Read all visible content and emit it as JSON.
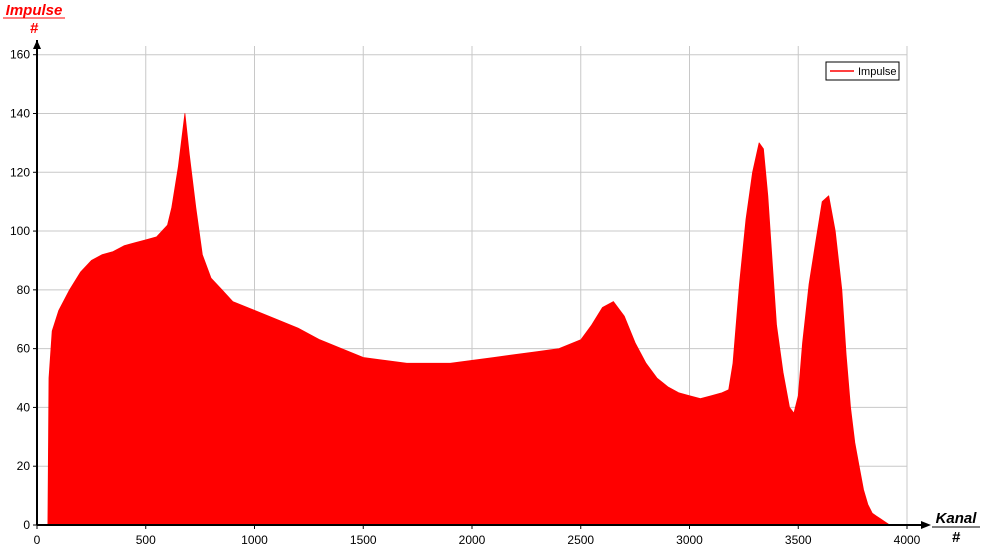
{
  "chart_data": {
    "type": "area",
    "title": "",
    "ylabel": "Impulse",
    "ylabel_unit": "#",
    "xlabel": "Kanal",
    "xlabel_unit": "#",
    "xlim": [
      0,
      4000
    ],
    "ylim": [
      0,
      165
    ],
    "x_ticks": [
      "0",
      "500",
      "1000",
      "1500",
      "2000",
      "2500",
      "3000",
      "3500",
      "4000"
    ],
    "y_ticks": [
      "0",
      "20",
      "40",
      "60",
      "80",
      "100",
      "120",
      "140",
      "160"
    ],
    "grid": true,
    "legend": {
      "position": "top-right",
      "entries": [
        "Impulse"
      ]
    },
    "colors": {
      "fill": "#ff0000",
      "axis": "#000000",
      "grid": "#c8c8c8",
      "title": "#ff0000"
    },
    "series": [
      {
        "name": "Impulse",
        "x": [
          0,
          50,
          55,
          70,
          100,
          150,
          200,
          250,
          300,
          350,
          400,
          450,
          500,
          550,
          600,
          620,
          650,
          680,
          700,
          730,
          760,
          800,
          850,
          900,
          1000,
          1100,
          1200,
          1300,
          1400,
          1500,
          1600,
          1700,
          1800,
          1900,
          2000,
          2100,
          2200,
          2300,
          2400,
          2500,
          2550,
          2600,
          2650,
          2700,
          2750,
          2800,
          2850,
          2900,
          2950,
          3000,
          3050,
          3100,
          3150,
          3180,
          3200,
          3230,
          3260,
          3290,
          3320,
          3340,
          3360,
          3380,
          3400,
          3430,
          3460,
          3480,
          3500,
          3520,
          3550,
          3580,
          3610,
          3640,
          3670,
          3700,
          3720,
          3740,
          3760,
          3780,
          3800,
          3820,
          3840,
          3860,
          3880,
          3900,
          3920,
          3940,
          3960,
          3980,
          4000
        ],
        "values": [
          0,
          0,
          50,
          66,
          73,
          80,
          86,
          90,
          92,
          93,
          95,
          96,
          97,
          98,
          102,
          108,
          122,
          140,
          126,
          108,
          92,
          84,
          80,
          76,
          73,
          70,
          67,
          63,
          60,
          57,
          56,
          55,
          55,
          55,
          56,
          57,
          58,
          59,
          60,
          63,
          68,
          74,
          76,
          71,
          62,
          55,
          50,
          47,
          45,
          44,
          43,
          44,
          45,
          46,
          55,
          82,
          104,
          120,
          130,
          128,
          112,
          90,
          68,
          52,
          40,
          38,
          44,
          62,
          82,
          96,
          110,
          112,
          100,
          80,
          58,
          40,
          28,
          20,
          12,
          7,
          4,
          3,
          2,
          1,
          0,
          0,
          0,
          0,
          0
        ]
      }
    ]
  }
}
